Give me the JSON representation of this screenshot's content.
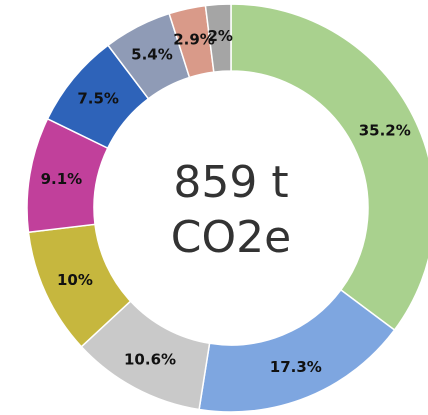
{
  "chart_data": {
    "type": "donut",
    "center_text": [
      "859 t",
      "CO2e"
    ],
    "values": [
      35.2,
      17.3,
      10.6,
      10,
      9.1,
      7.5,
      5.4,
      2.9,
      2
    ],
    "value_labels": [
      "35.2%",
      "17.3%",
      "10.6%",
      "10%",
      "9.1%",
      "7.5%",
      "5.4%",
      "2.9%",
      "2%"
    ],
    "colors": [
      "#a9d18e",
      "#7ea6e0",
      "#c9c9c9",
      "#c6b73e",
      "#c1409b",
      "#2e63b9",
      "#8f9bb6",
      "#d99a89",
      "#a5a5a5"
    ]
  }
}
